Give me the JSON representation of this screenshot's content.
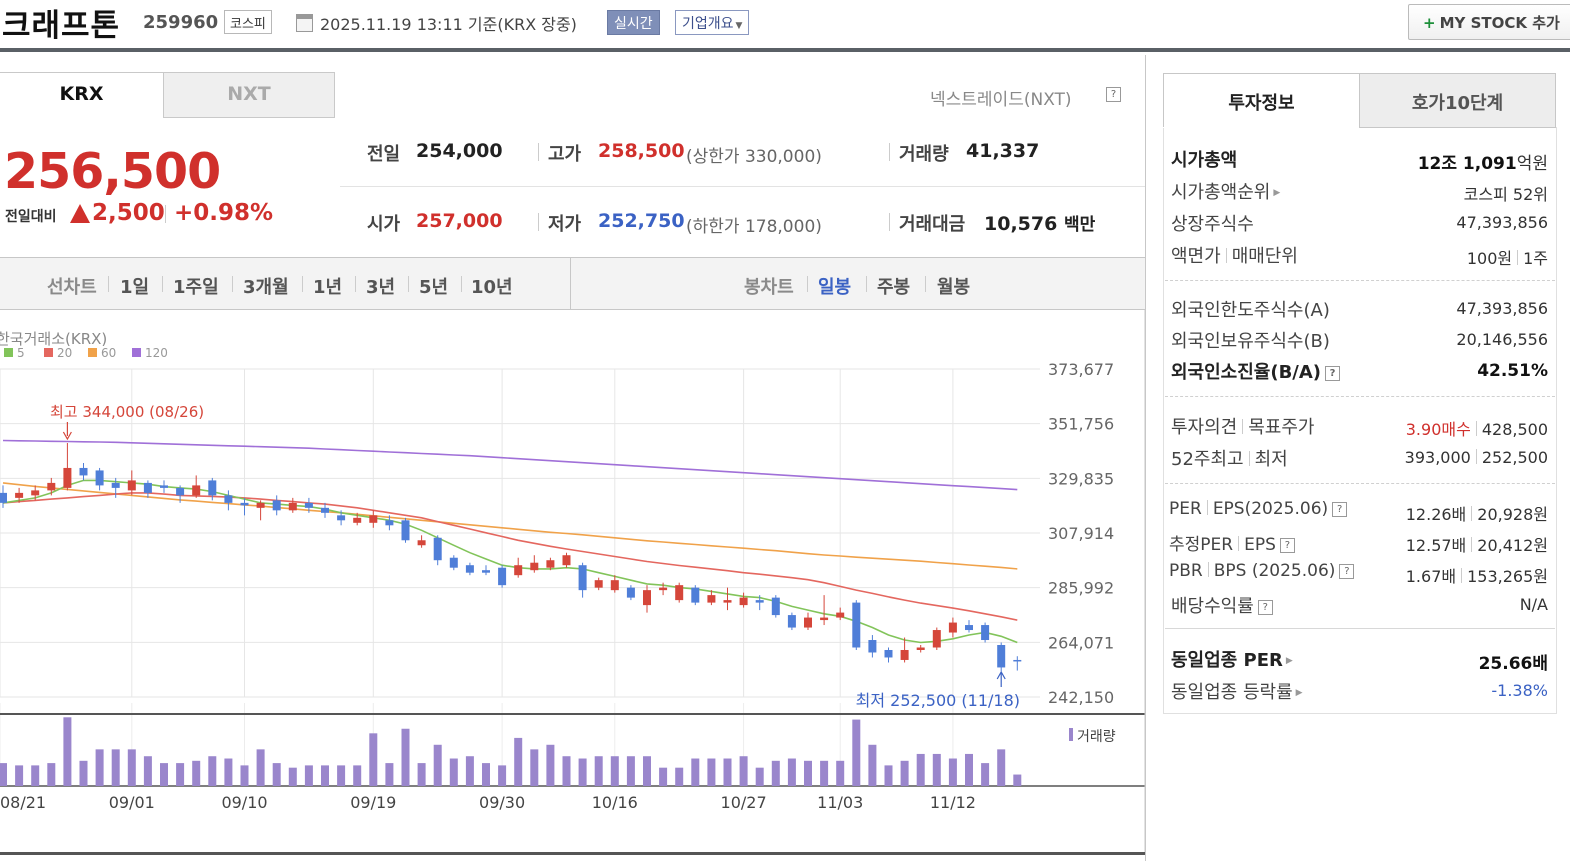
{
  "header": {
    "company_name": "크래프톤",
    "stock_code": "259960",
    "market": "코스피",
    "datetime": "2025.11.19 13:11",
    "basis": "기준(KRX 장중)",
    "realtime": "실시간",
    "overview": "기업개요",
    "mystock": "MY STOCK 추가"
  },
  "exchange_tabs": {
    "krx": "KRX",
    "nxt": "NXT",
    "nextrade": "넥스트레이드(NXT)"
  },
  "price": {
    "current": "256,500",
    "change_label": "전일대비",
    "change": "2,500",
    "change_rate": "+0.98%"
  },
  "stats": {
    "prev_label": "전일",
    "prev": "254,000",
    "high_label": "고가",
    "high": "258,500",
    "upper_limit": "(상한가 330,000)",
    "volume_label": "거래량",
    "volume": "41,337",
    "open_label": "시가",
    "open": "257,000",
    "low_label": "저가",
    "low": "252,750",
    "lower_limit": "(하한가 178,000)",
    "amount_label": "거래대금",
    "amount": "10,576",
    "amount_unit": "백만"
  },
  "range_bar": {
    "line_label": "선차트",
    "periods": [
      "1일",
      "1주일",
      "3개월",
      "1년",
      "3년",
      "5년",
      "10년"
    ],
    "candle_label": "봉차트",
    "candle_periods": [
      "일봉",
      "주봉",
      "월봉"
    ],
    "active_candle": "일봉"
  },
  "chart_data": {
    "type": "candlestick",
    "source_label": "한국거래소(KRX)",
    "legend": [
      {
        "name": "5",
        "color": "#82c45a"
      },
      {
        "name": "20",
        "color": "#e4675f"
      },
      {
        "name": "60",
        "color": "#f0a24a"
      },
      {
        "name": "120",
        "color": "#a070d8"
      }
    ],
    "y_ticks": [
      "373,677",
      "351,756",
      "329,835",
      "307,914",
      "285,992",
      "264,071",
      "242,150"
    ],
    "ylim": [
      242150,
      373677
    ],
    "x_ticks": [
      "08/21",
      "09/01",
      "09/10",
      "09/19",
      "09/30",
      "10/16",
      "10/27",
      "11/03",
      "11/12"
    ],
    "high_annotation": "최고 344,000 (08/26)",
    "low_annotation": "최저 252,500 (11/18)",
    "volume_label": "거래량",
    "candles": [
      {
        "o": 324000,
        "c": 320000,
        "h": 327000,
        "l": 318000
      },
      {
        "o": 322000,
        "c": 324000,
        "h": 326000,
        "l": 320000
      },
      {
        "o": 323000,
        "c": 325000,
        "h": 327000,
        "l": 321000
      },
      {
        "o": 325000,
        "c": 328000,
        "h": 330000,
        "l": 323000
      },
      {
        "o": 326000,
        "c": 334000,
        "h": 344000,
        "l": 325000
      },
      {
        "o": 334000,
        "c": 331000,
        "h": 336000,
        "l": 329000
      },
      {
        "o": 333000,
        "c": 327000,
        "h": 334000,
        "l": 325000
      },
      {
        "o": 328000,
        "c": 326000,
        "h": 330000,
        "l": 322000
      },
      {
        "o": 325000,
        "c": 329000,
        "h": 333000,
        "l": 323000
      },
      {
        "o": 328000,
        "c": 324000,
        "h": 329000,
        "l": 322000
      },
      {
        "o": 327000,
        "c": 326000,
        "h": 329000,
        "l": 324000
      },
      {
        "o": 326000,
        "c": 323000,
        "h": 327000,
        "l": 320000
      },
      {
        "o": 323000,
        "c": 327000,
        "h": 331000,
        "l": 322000
      },
      {
        "o": 329000,
        "c": 323000,
        "h": 330000,
        "l": 321000
      },
      {
        "o": 323000,
        "c": 320000,
        "h": 325000,
        "l": 317000
      },
      {
        "o": 320000,
        "c": 319000,
        "h": 322000,
        "l": 315000
      },
      {
        "o": 318000,
        "c": 320000,
        "h": 321000,
        "l": 313000
      },
      {
        "o": 321000,
        "c": 317000,
        "h": 323000,
        "l": 315000
      },
      {
        "o": 317000,
        "c": 320000,
        "h": 322000,
        "l": 316000
      },
      {
        "o": 320000,
        "c": 318000,
        "h": 322000,
        "l": 316000
      },
      {
        "o": 318000,
        "c": 316000,
        "h": 320000,
        "l": 314000
      },
      {
        "o": 315000,
        "c": 313000,
        "h": 317000,
        "l": 311000
      },
      {
        "o": 312000,
        "c": 314000,
        "h": 316000,
        "l": 311000
      },
      {
        "o": 312000,
        "c": 315000,
        "h": 317000,
        "l": 310000
      },
      {
        "o": 313000,
        "c": 311000,
        "h": 315000,
        "l": 309000
      },
      {
        "o": 313000,
        "c": 305000,
        "h": 314000,
        "l": 304000
      },
      {
        "o": 303000,
        "c": 305000,
        "h": 307000,
        "l": 302000
      },
      {
        "o": 306000,
        "c": 297000,
        "h": 307000,
        "l": 295000
      },
      {
        "o": 298000,
        "c": 294000,
        "h": 299000,
        "l": 293000
      },
      {
        "o": 295000,
        "c": 292000,
        "h": 296000,
        "l": 291000
      },
      {
        "o": 293000,
        "c": 292000,
        "h": 295000,
        "l": 291000
      },
      {
        "o": 294000,
        "c": 287000,
        "h": 295000,
        "l": 286000
      },
      {
        "o": 291000,
        "c": 295000,
        "h": 298000,
        "l": 290000
      },
      {
        "o": 293000,
        "c": 296000,
        "h": 299000,
        "l": 292000
      },
      {
        "o": 294000,
        "c": 297000,
        "h": 298000,
        "l": 293000
      },
      {
        "o": 295000,
        "c": 299000,
        "h": 300000,
        "l": 294000
      },
      {
        "o": 295000,
        "c": 285000,
        "h": 296000,
        "l": 282000
      },
      {
        "o": 286000,
        "c": 289000,
        "h": 290000,
        "l": 285000
      },
      {
        "o": 285000,
        "c": 289000,
        "h": 291000,
        "l": 284000
      },
      {
        "o": 286000,
        "c": 282000,
        "h": 287000,
        "l": 281000
      },
      {
        "o": 279000,
        "c": 285000,
        "h": 287000,
        "l": 276000
      },
      {
        "o": 285000,
        "c": 286000,
        "h": 288000,
        "l": 283000
      },
      {
        "o": 281000,
        "c": 287000,
        "h": 288000,
        "l": 280000
      },
      {
        "o": 286000,
        "c": 280000,
        "h": 287000,
        "l": 279000
      },
      {
        "o": 280000,
        "c": 283000,
        "h": 285000,
        "l": 279000
      },
      {
        "o": 280000,
        "c": 281000,
        "h": 286000,
        "l": 277000
      },
      {
        "o": 279000,
        "c": 282000,
        "h": 284000,
        "l": 278000
      },
      {
        "o": 281000,
        "c": 280000,
        "h": 283000,
        "l": 277000
      },
      {
        "o": 282000,
        "c": 275000,
        "h": 283000,
        "l": 274000
      },
      {
        "o": 275000,
        "c": 270000,
        "h": 276000,
        "l": 269000
      },
      {
        "o": 270000,
        "c": 274000,
        "h": 276000,
        "l": 269000
      },
      {
        "o": 273000,
        "c": 274000,
        "h": 283000,
        "l": 271000
      },
      {
        "o": 274000,
        "c": 276000,
        "h": 278000,
        "l": 273000
      },
      {
        "o": 280000,
        "c": 262000,
        "h": 281000,
        "l": 261000
      },
      {
        "o": 265000,
        "c": 260000,
        "h": 267000,
        "l": 258000
      },
      {
        "o": 261000,
        "c": 258000,
        "h": 262000,
        "l": 256000
      },
      {
        "o": 257000,
        "c": 261000,
        "h": 266000,
        "l": 256000
      },
      {
        "o": 261000,
        "c": 262000,
        "h": 263000,
        "l": 260000
      },
      {
        "o": 262000,
        "c": 269000,
        "h": 270000,
        "l": 261000
      },
      {
        "o": 268000,
        "c": 272000,
        "h": 274000,
        "l": 266000
      },
      {
        "o": 271000,
        "c": 269000,
        "h": 273000,
        "l": 268000
      },
      {
        "o": 271000,
        "c": 265000,
        "h": 272000,
        "l": 264000
      },
      {
        "o": 263000,
        "c": 254000,
        "h": 264000,
        "l": 252500
      },
      {
        "o": 257000,
        "c": 256500,
        "h": 258500,
        "l": 252750
      }
    ],
    "ma5": [
      320000,
      321000,
      322000,
      324000,
      327000,
      329000,
      329000,
      328500,
      328000,
      327500,
      326500,
      326000,
      325500,
      324500,
      323000,
      321500,
      320000,
      319500,
      319000,
      318500,
      317500,
      316000,
      315000,
      314000,
      313000,
      311500,
      309000,
      306000,
      303000,
      300000,
      297500,
      295000,
      294000,
      293500,
      293500,
      294000,
      293500,
      292000,
      290500,
      289000,
      287500,
      287000,
      286000,
      285500,
      284500,
      283500,
      282500,
      282000,
      280500,
      278500,
      277000,
      275500,
      274500,
      272500,
      270000,
      267000,
      265000,
      264000,
      264500,
      265500,
      267000,
      268000,
      266500,
      264000
    ],
    "ma20": [
      320000,
      320500,
      321000,
      321500,
      322000,
      322500,
      323000,
      323500,
      324000,
      324000,
      323500,
      323000,
      322800,
      322600,
      322300,
      322000,
      321500,
      321000,
      320500,
      320000,
      319500,
      318800,
      318000,
      317000,
      316000,
      315000,
      314000,
      312500,
      311000,
      309500,
      308000,
      306500,
      305000,
      303800,
      302600,
      301500,
      300500,
      299500,
      298500,
      297500,
      296500,
      295700,
      294900,
      294200,
      293500,
      292800,
      292000,
      291400,
      290700,
      290000,
      289200,
      288000,
      286500,
      285000,
      283700,
      282300,
      281000,
      279800,
      278800,
      277800,
      276700,
      275500,
      274300,
      273000
    ],
    "ma60": [
      328000,
      327300,
      326600,
      326000,
      325400,
      324800,
      324200,
      323600,
      323000,
      322400,
      321800,
      321200,
      320700,
      320200,
      319700,
      319200,
      318700,
      318100,
      317600,
      317000,
      316500,
      316000,
      315400,
      314800,
      314200,
      313600,
      313000,
      312400,
      311800,
      311200,
      310600,
      310000,
      309400,
      308800,
      308200,
      307700,
      307200,
      306600,
      306000,
      305400,
      304800,
      304300,
      303800,
      303300,
      302800,
      302300,
      301800,
      301300,
      300800,
      300200,
      299600,
      299100,
      298700,
      298200,
      297800,
      297400,
      297000,
      296600,
      296100,
      295600,
      295100,
      294600,
      294100,
      293500
    ],
    "ma120": [
      345000,
      344900,
      344800,
      344700,
      344600,
      344500,
      344400,
      344300,
      344100,
      343900,
      343700,
      343500,
      343300,
      343100,
      342900,
      342700,
      342500,
      342300,
      342100,
      341900,
      341600,
      341300,
      341000,
      340700,
      340400,
      340100,
      339800,
      339500,
      339200,
      338900,
      338500,
      338100,
      337700,
      337300,
      336900,
      336500,
      336100,
      335700,
      335300,
      334900,
      334500,
      334100,
      333700,
      333300,
      332900,
      332500,
      332100,
      331700,
      331300,
      330900,
      330500,
      330100,
      329700,
      329300,
      328900,
      328500,
      328100,
      327700,
      327300,
      326900,
      326500,
      326100,
      325700,
      325300
    ],
    "volumes": [
      1.0,
      0.9,
      0.9,
      1.0,
      3.0,
      1.1,
      1.6,
      1.6,
      1.6,
      1.3,
      1.0,
      1.0,
      1.1,
      1.3,
      1.2,
      0.9,
      1.6,
      1.0,
      0.8,
      0.9,
      0.9,
      0.9,
      0.9,
      2.3,
      1.0,
      2.5,
      1.0,
      1.8,
      1.2,
      1.3,
      1.0,
      0.9,
      2.1,
      1.6,
      1.8,
      1.3,
      1.2,
      1.3,
      1.3,
      1.3,
      1.3,
      0.8,
      0.8,
      1.2,
      1.2,
      1.2,
      1.3,
      0.8,
      1.1,
      1.2,
      1.1,
      1.1,
      1.1,
      2.9,
      1.8,
      0.9,
      1.1,
      1.4,
      1.4,
      1.2,
      1.4,
      1.0,
      1.6,
      0.5
    ]
  },
  "right_panel": {
    "tabs": [
      "투자정보",
      "호가10단계"
    ],
    "market_cap_label": "시가총액",
    "market_cap": "12조 1,091",
    "market_cap_unit": "억원",
    "market_cap_rank_label": "시가총액순위",
    "market_cap_rank": "코스피 52위",
    "listed_shares_label": "상장주식수",
    "listed_shares": "47,393,856",
    "par_label": "액면가",
    "trade_unit_label": "매매단위",
    "par_value": "100원",
    "trade_unit": "1주",
    "foreign_limit_label": "외국인한도주식수(A)",
    "foreign_limit": "47,393,856",
    "foreign_hold_label": "외국인보유주식수(B)",
    "foreign_hold": "20,146,556",
    "foreign_ratio_label": "외국인소진율(B/A)",
    "foreign_ratio": "42.51%",
    "opinion_label": "투자의견",
    "target_label": "목표주가",
    "opinion": "3.90매수",
    "target": "428,500",
    "w52_high_label": "52주최고",
    "w52_low_label": "최저",
    "w52_high": "393,000",
    "w52_low": "252,500",
    "per_label": "PER",
    "eps_label": "EPS(2025.06)",
    "per": "12.26배",
    "eps": "20,928원",
    "est_per_label": "추정PER",
    "est_eps_label": "EPS",
    "est_per": "12.57배",
    "est_eps": "20,412원",
    "pbr_label": "PBR",
    "bps_label": "BPS (2025.06)",
    "pbr": "1.67배",
    "bps": "153,265원",
    "dividend_label": "배당수익률",
    "dividend": "N/A",
    "industry_per_label": "동일업종 PER",
    "industry_per": "25.66배",
    "industry_change_label": "동일업종 등락률",
    "industry_change": "-1.38%"
  }
}
